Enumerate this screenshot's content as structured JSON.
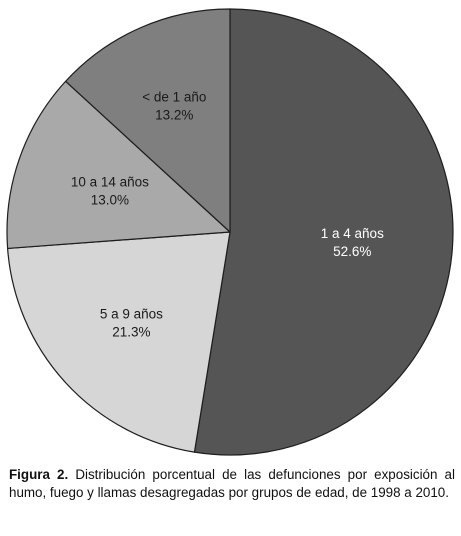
{
  "chart_data": {
    "type": "pie",
    "start_angle_deg": 0,
    "direction": "clockwise",
    "slices": [
      {
        "label": "1 a 4 años",
        "value": 52.6,
        "value_label": "52.6%",
        "color": "#555555"
      },
      {
        "label": "5 a 9 años",
        "value": 21.3,
        "value_label": "21.3%",
        "color": "#d6d6d6"
      },
      {
        "label": "10 a 14 años",
        "value": 13.0,
        "value_label": "13.0%",
        "color": "#a9a9a9"
      },
      {
        "label": "< de 1 año",
        "value": 13.2,
        "value_label": "13.2%",
        "color": "#7f7f7f"
      }
    ]
  },
  "caption": {
    "figure_label": "Figura 2.",
    "text": "Distribución porcentual de las defunciones por exposición al humo, fuego y llamas desagregadas por grupos de edad, de 1998 a 2010."
  }
}
